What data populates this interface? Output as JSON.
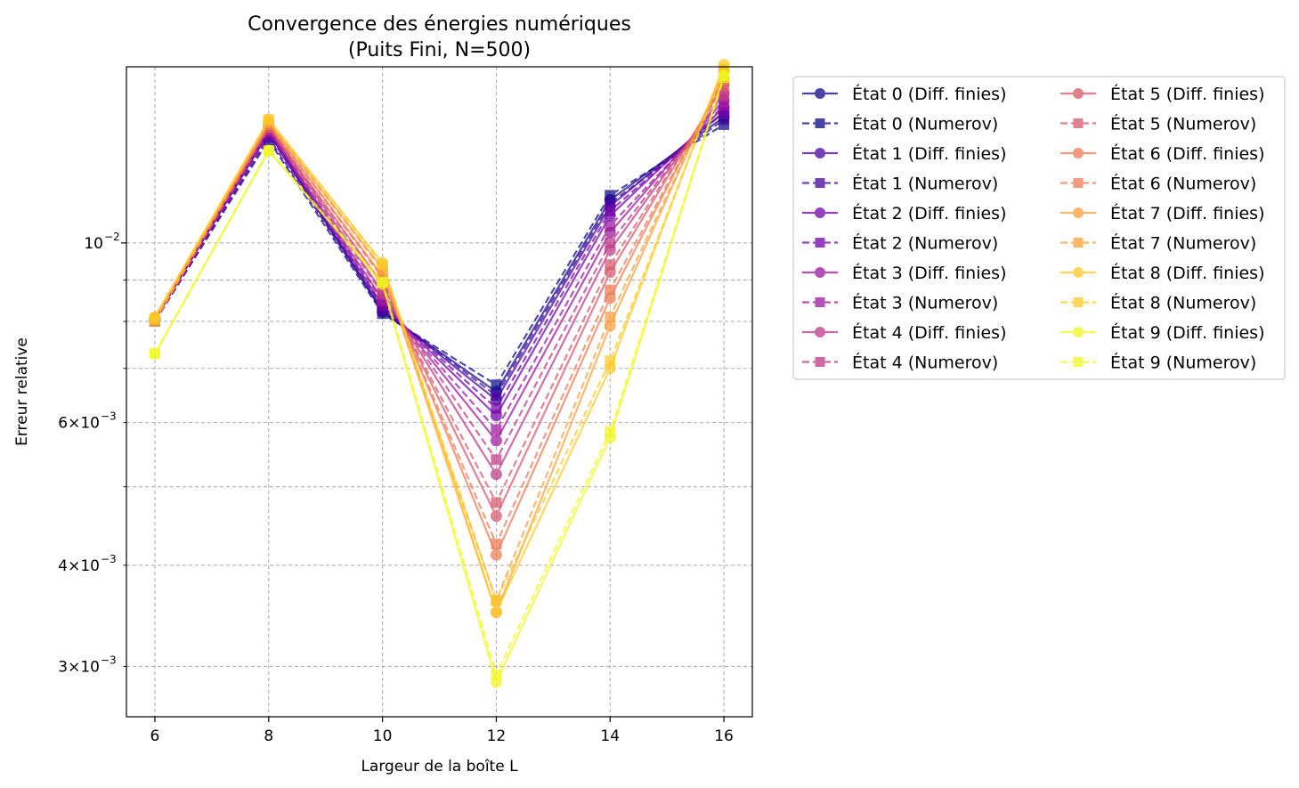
{
  "chart_data": {
    "type": "line",
    "title": "Convergence des énergies numériques\n(Puits Fini, N=500)",
    "xlabel": "Largeur de la boîte L",
    "ylabel": "Erreur relative",
    "yscale": "log",
    "xlim": [
      5.5,
      16.5
    ],
    "ylim": [
      0.0026,
      0.0165
    ],
    "x": [
      6,
      8,
      10,
      12,
      14,
      16
    ],
    "x_ticks": [
      6,
      8,
      10,
      12,
      14,
      16
    ],
    "x_tick_labels": [
      "6",
      "8",
      "10",
      "12",
      "14",
      "16"
    ],
    "y_ticks_major": [
      0.01
    ],
    "y_ticks_major_labels": [
      "10",
      "−2"
    ],
    "y_ticks_minor": [
      0.003,
      0.004,
      0.006
    ],
    "y_ticks_minor_labels": [
      {
        "mantissa": "3×10",
        "exp": "−3"
      },
      {
        "mantissa": "4×10",
        "exp": "−3"
      },
      {
        "mantissa": "6×10",
        "exp": "−3"
      }
    ],
    "grid_y": [
      0.003,
      0.004,
      0.005,
      0.006,
      0.007,
      0.008,
      0.009,
      0.01
    ],
    "grid": true,
    "legend_placement": "outside-right",
    "legend_columns": 2,
    "series": [
      {
        "name": "État 0 (Diff. finies)",
        "color": "#0d0887",
        "dash": false,
        "marker": "circle",
        "values": [
          0.00805,
          0.0137,
          0.00822,
          0.00655,
          0.0113,
          0.0143
        ]
      },
      {
        "name": "État 0 (Numerov)",
        "color": "#0d0887",
        "dash": true,
        "marker": "square",
        "values": [
          0.008,
          0.0134,
          0.00818,
          0.00668,
          0.01145,
          0.014
        ]
      },
      {
        "name": "État 1 (Diff. finies)",
        "color": "#46039f",
        "dash": false,
        "marker": "circle",
        "values": [
          0.00805,
          0.0137,
          0.00828,
          0.0064,
          0.0111,
          0.0145
        ]
      },
      {
        "name": "État 1 (Numerov)",
        "color": "#46039f",
        "dash": true,
        "marker": "square",
        "values": [
          0.008,
          0.0135,
          0.00825,
          0.00648,
          0.0112,
          0.0142
        ]
      },
      {
        "name": "État 2 (Diff. finies)",
        "color": "#7201a8",
        "dash": false,
        "marker": "circle",
        "values": [
          0.00806,
          0.0138,
          0.00838,
          0.00612,
          0.0108,
          0.0147
        ]
      },
      {
        "name": "État 2 (Numerov)",
        "color": "#7201a8",
        "dash": true,
        "marker": "square",
        "values": [
          0.008,
          0.0136,
          0.00835,
          0.00625,
          0.01095,
          0.0145
        ]
      },
      {
        "name": "État 3 (Diff. finies)",
        "color": "#9c179e",
        "dash": false,
        "marker": "circle",
        "values": [
          0.00806,
          0.0138,
          0.00852,
          0.0057,
          0.0103,
          0.015
        ]
      },
      {
        "name": "État 3 (Numerov)",
        "color": "#9c179e",
        "dash": true,
        "marker": "square",
        "values": [
          0.008,
          0.0137,
          0.00848,
          0.00588,
          0.0105,
          0.0148
        ]
      },
      {
        "name": "État 4 (Diff. finies)",
        "color": "#bd3786",
        "dash": false,
        "marker": "circle",
        "values": [
          0.00807,
          0.0139,
          0.0087,
          0.00518,
          0.0098,
          0.0153
        ]
      },
      {
        "name": "État 4 (Numerov)",
        "color": "#bd3786",
        "dash": true,
        "marker": "square",
        "values": [
          0.008,
          0.0138,
          0.00865,
          0.0054,
          0.01,
          0.0152
        ]
      },
      {
        "name": "État 5 (Diff. finies)",
        "color": "#d8576b",
        "dash": false,
        "marker": "circle",
        "values": [
          0.00808,
          0.0139,
          0.0089,
          0.0046,
          0.0092,
          0.0157
        ]
      },
      {
        "name": "État 5 (Numerov)",
        "color": "#d8576b",
        "dash": true,
        "marker": "square",
        "values": [
          0.008,
          0.0139,
          0.00885,
          0.00478,
          0.0094,
          0.0156
        ]
      },
      {
        "name": "État 6 (Diff. finies)",
        "color": "#ed7953",
        "dash": false,
        "marker": "circle",
        "values": [
          0.00808,
          0.014,
          0.0091,
          0.00412,
          0.00855,
          0.016
        ]
      },
      {
        "name": "État 6 (Numerov)",
        "color": "#ed7953",
        "dash": true,
        "marker": "square",
        "values": [
          0.008,
          0.014,
          0.00905,
          0.00425,
          0.00875,
          0.0159
        ]
      },
      {
        "name": "État 7 (Diff. finies)",
        "color": "#fb9f3a",
        "dash": false,
        "marker": "circle",
        "values": [
          0.00809,
          0.0141,
          0.0093,
          0.0035,
          0.0079,
          0.0163
        ]
      },
      {
        "name": "État 7 (Numerov)",
        "color": "#fb9f3a",
        "dash": true,
        "marker": "square",
        "values": [
          0.008,
          0.0141,
          0.00925,
          0.00362,
          0.0081,
          0.0162
        ]
      },
      {
        "name": "État 8 (Diff. finies)",
        "color": "#fdca26",
        "dash": false,
        "marker": "circle",
        "values": [
          0.0081,
          0.0142,
          0.00945,
          0.0035,
          0.007,
          0.0166
        ]
      },
      {
        "name": "État 8 (Numerov)",
        "color": "#fdca26",
        "dash": true,
        "marker": "square",
        "values": [
          0.00805,
          0.0142,
          0.0094,
          0.00362,
          0.00715,
          0.0164
        ]
      },
      {
        "name": "État 9 (Diff. finies)",
        "color": "#f0f921",
        "dash": false,
        "marker": "circle",
        "values": [
          0.0073,
          0.013,
          0.0089,
          0.00287,
          0.00575,
          0.0161
        ]
      },
      {
        "name": "État 9 (Numerov)",
        "color": "#f0f921",
        "dash": true,
        "marker": "square",
        "values": [
          0.0073,
          0.013,
          0.00895,
          0.00293,
          0.00585,
          0.016
        ]
      }
    ]
  }
}
